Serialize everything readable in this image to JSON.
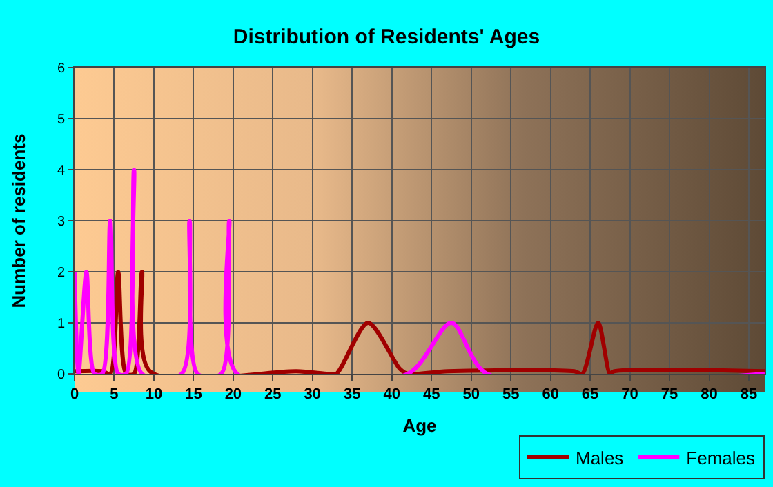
{
  "chart_data": {
    "type": "line",
    "title": "Distribution of Residents' Ages",
    "xlabel": "Age",
    "ylabel": "Number of residents",
    "xlim": [
      0,
      87
    ],
    "xticks": [
      0,
      5,
      10,
      15,
      20,
      25,
      30,
      35,
      40,
      45,
      50,
      55,
      60,
      65,
      70,
      75,
      80,
      85
    ],
    "ylim": [
      0,
      6
    ],
    "yticks": [
      0,
      1,
      2,
      3,
      4,
      5,
      6
    ],
    "grid": true,
    "legend": "bottom right",
    "marker": "none",
    "line_style": "solid",
    "series": [
      {
        "name": "Males",
        "color": "#a00000",
        "x": [
          0,
          3.5,
          4.5,
          5.5,
          6.5,
          7.5,
          8.5,
          9.5,
          28,
          32,
          33,
          37,
          41,
          42,
          47,
          63,
          64,
          66,
          67.5,
          68,
          87
        ],
        "values": [
          0.05,
          0.05,
          0,
          2,
          0,
          0,
          2,
          0.05,
          0.05,
          0,
          0,
          1,
          0.1,
          0,
          0.05,
          0.05,
          0,
          1,
          0,
          0.05,
          0.05
        ]
      },
      {
        "name": "Females",
        "color": "#ff00ff",
        "x": [
          0,
          0.5,
          1.5,
          2.5,
          3.5,
          4.5,
          5.5,
          6.5,
          7.5,
          8.5,
          13.5,
          14.5,
          15.5,
          18.5,
          19.5,
          20.5,
          42,
          47.5,
          52,
          87
        ],
        "values": [
          2,
          0,
          2,
          0,
          0,
          3,
          0,
          0,
          4,
          0,
          0,
          3,
          0,
          0,
          3,
          0,
          0,
          1,
          0,
          0
        ]
      }
    ]
  }
}
